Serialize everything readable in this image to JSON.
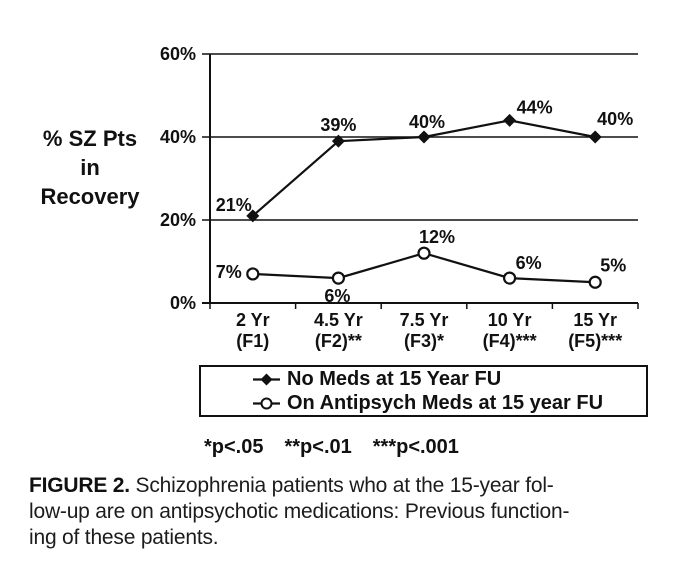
{
  "figure": {
    "y_axis_title_lines": [
      "% SZ Pts",
      "in",
      "Recovery"
    ],
    "significance_note": [
      "*p<.05",
      "**p<.01",
      "***p<.001"
    ],
    "caption": {
      "label": "FIGURE 2.",
      "line1": "Schizophrenia patients who at the 15-year fol-",
      "line2": "low-up are on antipsychotic medications: Previous function-",
      "line3": "ing of these patients."
    }
  },
  "chart_data": {
    "type": "line",
    "title": "",
    "xlabel": "",
    "ylabel": "% SZ Pts in Recovery",
    "ylim": [
      0,
      60
    ],
    "yticks": [
      0,
      20,
      40,
      60
    ],
    "ytick_labels": [
      "0%",
      "20%",
      "40%",
      "60%"
    ],
    "grid": "horizontal",
    "legend_position": "bottom-box",
    "categories": [
      {
        "line1": "2 Yr",
        "line2": "(F1)"
      },
      {
        "line1": "4.5 Yr",
        "line2": "(F2)**"
      },
      {
        "line1": "7.5 Yr",
        "line2": "(F3)*"
      },
      {
        "line1": "10 Yr",
        "line2": "(F4)***"
      },
      {
        "line1": "15 Yr",
        "line2": "(F5)***"
      }
    ],
    "series": [
      {
        "name": "No Meds at 15 Year FU",
        "marker": "filled-diamond",
        "values": [
          21,
          39,
          40,
          44,
          40
        ],
        "point_labels": [
          "21%",
          "39%",
          "40%",
          "44%",
          "40%"
        ]
      },
      {
        "name": "On Antipsych Meds at 15 year FU",
        "marker": "open-circle",
        "values": [
          7,
          6,
          12,
          6,
          5
        ],
        "point_labels": [
          "7%",
          "6%",
          "12%",
          "6%",
          "5%"
        ]
      }
    ]
  }
}
